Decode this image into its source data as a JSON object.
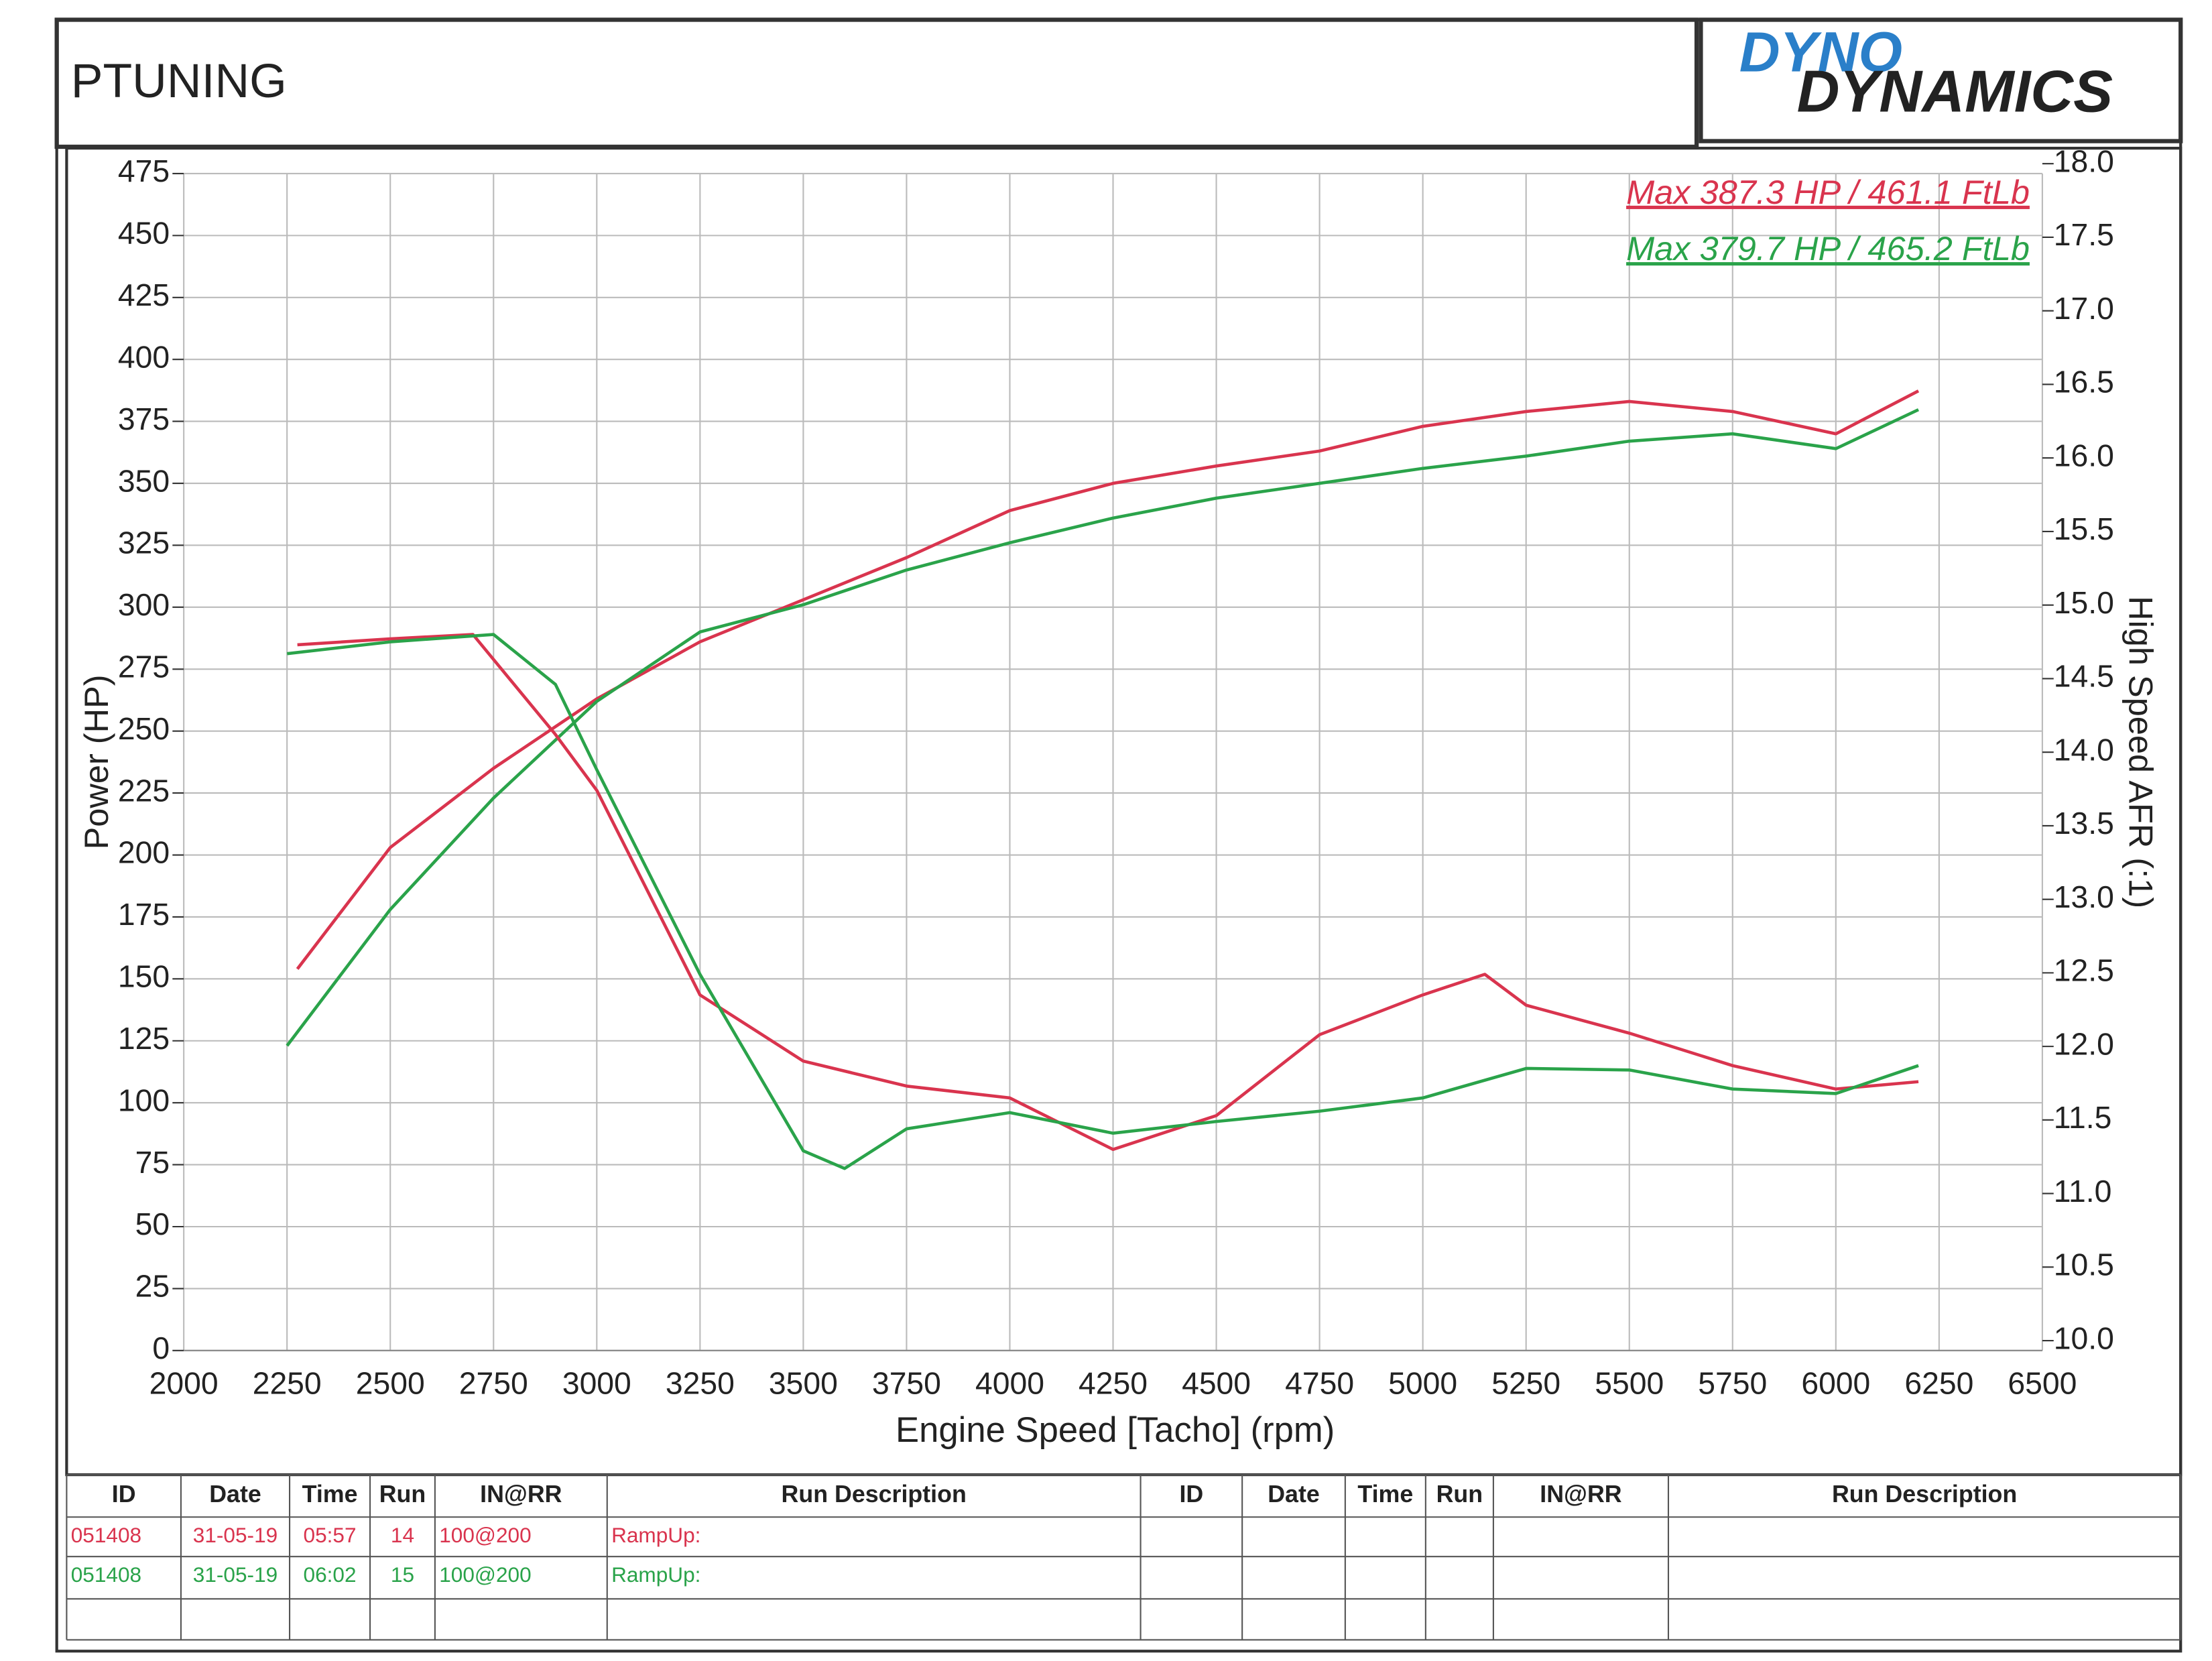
{
  "header": {
    "title": "PTUNING",
    "logo": [
      "DYNO",
      "DYNAMICS"
    ]
  },
  "chart_data": {
    "type": "line",
    "ylabel": "Power (HP)",
    "xlabel": "Engine Speed [Tacho] (rpm)",
    "y2label": "High Speed AFR (:1)",
    "xlim": [
      2000,
      6500
    ],
    "xticks": [
      2000,
      2250,
      2500,
      2750,
      3000,
      3250,
      3500,
      3750,
      4000,
      4250,
      4500,
      4750,
      5000,
      5250,
      5500,
      5750,
      6000,
      6250,
      6500
    ],
    "ylim": [
      0,
      475
    ],
    "yticks": [
      0,
      25,
      50,
      75,
      100,
      125,
      150,
      175,
      200,
      225,
      250,
      275,
      300,
      325,
      350,
      375,
      400,
      425,
      450,
      475
    ],
    "y2lim": [
      10,
      18
    ],
    "y2ticks": [
      {
        "value": 10,
        "label": "10.0"
      },
      {
        "value": 10.5,
        "label": "10.5"
      },
      {
        "value": 11,
        "label": "11.0"
      },
      {
        "value": 11.5,
        "label": "11.5"
      },
      {
        "value": 12,
        "label": "12.0"
      },
      {
        "value": 12.5,
        "label": "12.5"
      },
      {
        "value": 13,
        "label": "13.0"
      },
      {
        "value": 13.5,
        "label": "13.5"
      },
      {
        "value": 14,
        "label": "14.0"
      },
      {
        "value": 14.5,
        "label": "14.5"
      },
      {
        "value": 15,
        "label": "15.0"
      },
      {
        "value": 15.5,
        "label": "15.5"
      },
      {
        "value": 16,
        "label": "16.0"
      },
      {
        "value": 16.5,
        "label": "16.5"
      },
      {
        "value": 17,
        "label": "17.0"
      },
      {
        "value": 17.5,
        "label": "17.5"
      },
      {
        "value": 18,
        "label": "18.0"
      }
    ],
    "grid": true,
    "annotations": [
      {
        "text": "Max 387.3 HP  / 461.1 FtLb",
        "color": "#d9344e"
      },
      {
        "text": "Max 379.7 HP  / 465.2 FtLb",
        "color": "#2aa34a"
      }
    ],
    "series": [
      {
        "color": "#d9344e",
        "x": [
          2275,
          2500,
          2750,
          3000,
          3250,
          3500,
          3750,
          4000,
          4250,
          4500,
          4750,
          5000,
          5250,
          5500,
          5750,
          6000,
          6200
        ],
        "values": [
          154,
          203,
          235,
          263,
          286,
          303,
          320,
          339,
          350,
          357,
          363,
          373,
          379,
          383,
          379,
          370,
          387.3
        ]
      },
      {
        "color": "#2aa34a",
        "x": [
          2250,
          2500,
          2750,
          3000,
          3250,
          3500,
          3750,
          4000,
          4250,
          4500,
          4750,
          5000,
          5250,
          5500,
          5750,
          6000,
          6200
        ],
        "values": [
          123,
          178,
          223,
          262,
          290,
          301,
          315,
          326,
          336,
          344,
          350,
          356,
          361,
          367,
          370,
          364,
          379.7
        ]
      },
      {
        "color": "#d9344e",
        "axis": "y2",
        "x": [
          2275,
          2500,
          2700,
          2900,
          3000,
          3250,
          3500,
          3750,
          4000,
          4250,
          4500,
          4750,
          5000,
          5150,
          5250,
          5500,
          5750,
          6000,
          6200
        ],
        "values": [
          14.73,
          14.77,
          14.8,
          14.12,
          13.74,
          12.35,
          11.9,
          11.73,
          11.65,
          11.3,
          11.53,
          12.08,
          12.35,
          12.49,
          12.28,
          12.09,
          11.87,
          11.71,
          11.76
        ]
      },
      {
        "color": "#2aa34a",
        "axis": "y2",
        "x": [
          2250,
          2500,
          2750,
          2900,
          3000,
          3250,
          3500,
          3600,
          3750,
          4000,
          4250,
          4500,
          4750,
          5000,
          5250,
          5500,
          5750,
          6000,
          6200
        ],
        "values": [
          14.67,
          14.75,
          14.8,
          14.46,
          13.88,
          12.49,
          11.29,
          11.17,
          11.44,
          11.55,
          11.41,
          11.49,
          11.56,
          11.65,
          11.85,
          11.84,
          11.71,
          11.68,
          11.87
        ]
      }
    ]
  },
  "table": {
    "headers": [
      "ID",
      "Date",
      "Time",
      "Run",
      "IN@RR",
      "Run Description",
      "ID",
      "Date",
      "Time",
      "Run",
      "IN@RR",
      "Run Description"
    ],
    "rows": [
      {
        "color": "#d9344e",
        "cells": [
          "051408",
          "31-05-19",
          "05:57",
          "14",
          "100@200",
          "RampUp:"
        ]
      },
      {
        "color": "#2aa34a",
        "cells": [
          "051408",
          "31-05-19",
          "06:02",
          "15",
          "100@200",
          "RampUp:"
        ]
      }
    ]
  }
}
